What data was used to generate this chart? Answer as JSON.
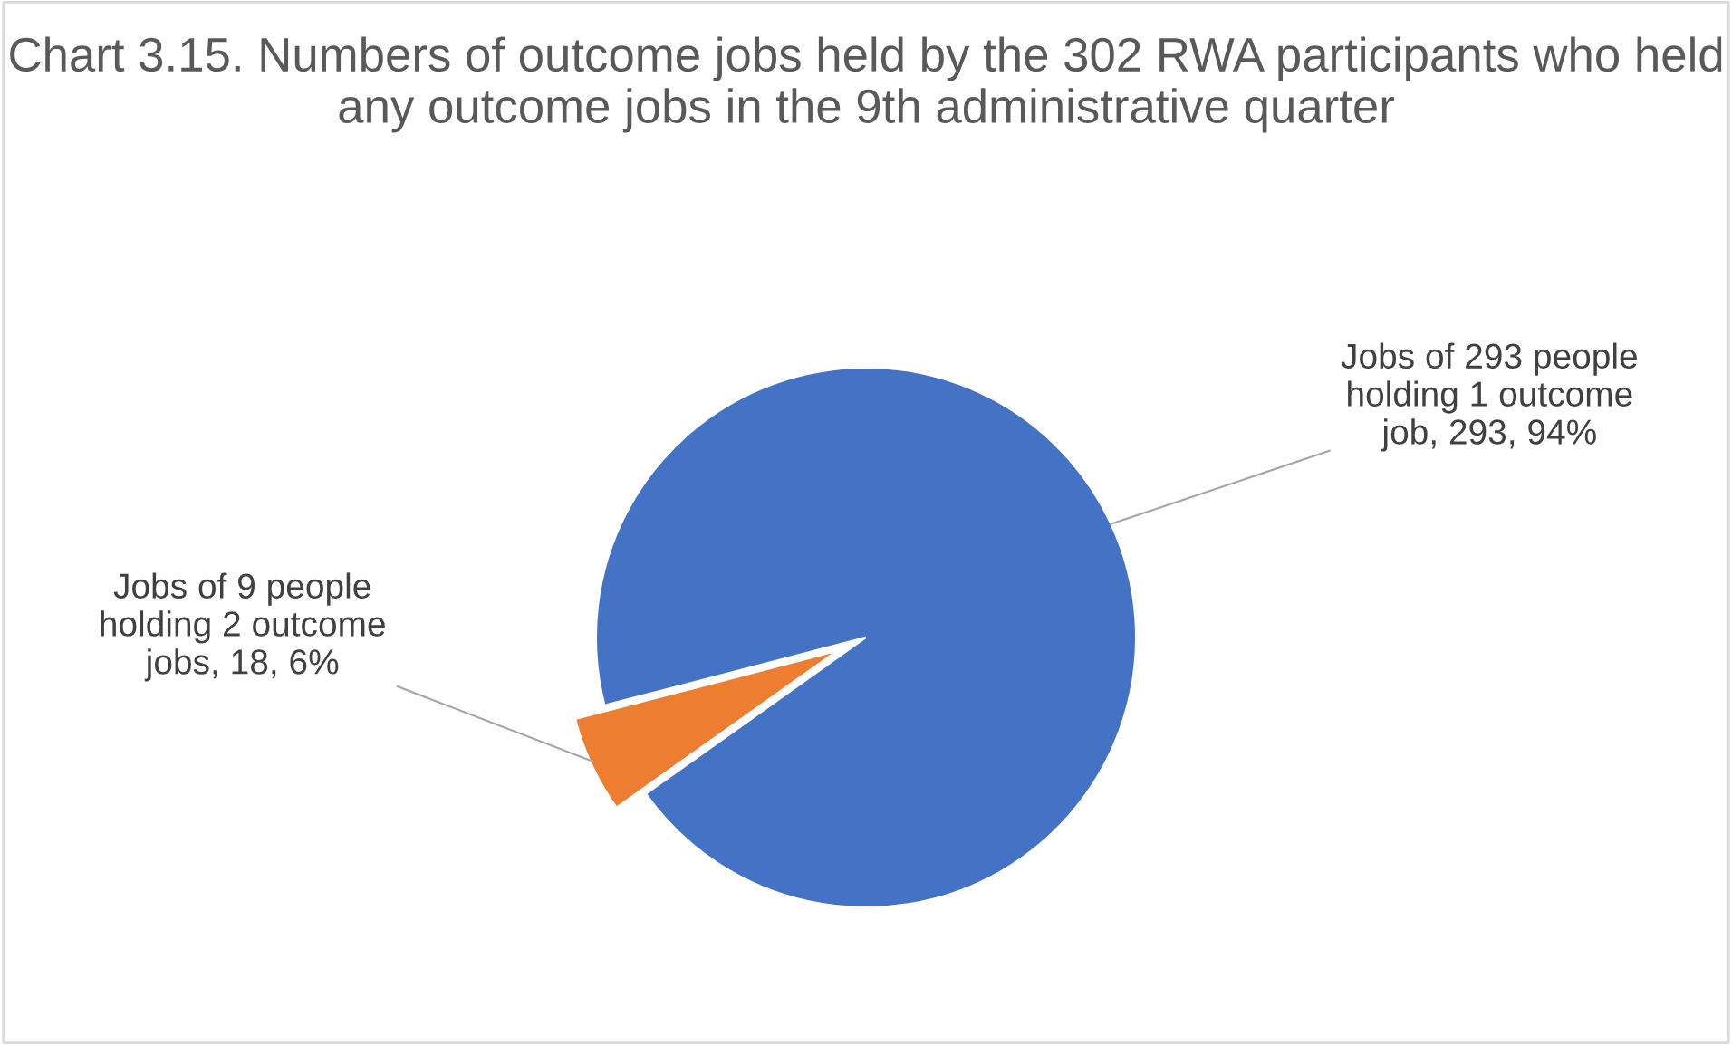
{
  "chart_data": {
    "type": "pie",
    "title": "Chart 3.15. Numbers of outcome jobs held by the 302 RWA participants who held any outcome jobs in the 9th administrative quarter",
    "categories": [
      "Jobs of 293 people holding 1 outcome job",
      "Jobs of 9 people holding 2 outcome jobs"
    ],
    "values": [
      293,
      18
    ],
    "value_labels": [
      "293, 94%",
      "18, 6%"
    ],
    "colors": [
      "#4472c4",
      "#ed7d31"
    ],
    "legend": false
  }
}
